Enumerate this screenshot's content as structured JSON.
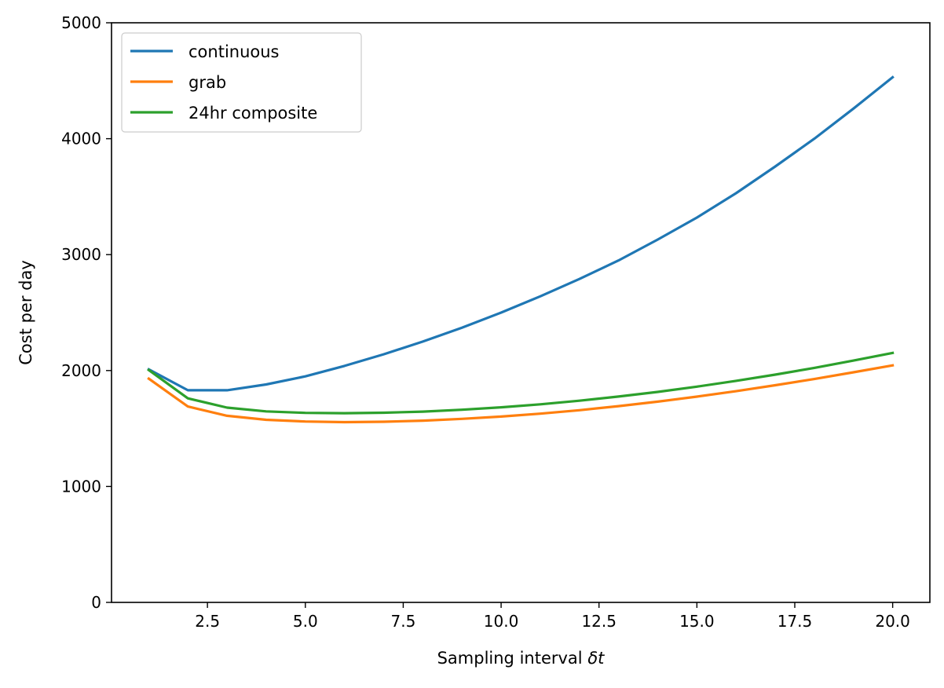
{
  "chart_data": {
    "type": "line",
    "title": "",
    "xlabel_text": "Sampling interval ",
    "xlabel_math": "δt",
    "ylabel": "Cost per day",
    "xlim": [
      0.05,
      20.95
    ],
    "ylim": [
      0,
      5000
    ],
    "xticks": [
      2.5,
      5.0,
      7.5,
      10.0,
      12.5,
      15.0,
      17.5,
      20.0
    ],
    "xtick_labels": [
      "2.5",
      "5.0",
      "7.5",
      "10.0",
      "12.5",
      "15.0",
      "17.5",
      "20.0"
    ],
    "yticks": [
      0,
      1000,
      2000,
      3000,
      4000,
      5000
    ],
    "ytick_labels": [
      "0",
      "1000",
      "2000",
      "3000",
      "4000",
      "5000"
    ],
    "grid": false,
    "legend_position": "top-left",
    "x": [
      1,
      2,
      3,
      4,
      5,
      6,
      7,
      8,
      9,
      10,
      11,
      12,
      13,
      14,
      15,
      16,
      17,
      18,
      19,
      20
    ],
    "series": [
      {
        "name": "continuous",
        "color": "#1f77b4",
        "values": [
          2010,
          1830,
          1830,
          1880,
          1950,
          2040,
          2140,
          2250,
          2370,
          2500,
          2640,
          2790,
          2950,
          3130,
          3320,
          3530,
          3760,
          4000,
          4260,
          4530
        ]
      },
      {
        "name": "grab",
        "color": "#ff7f0e",
        "values": [
          1930,
          1690,
          1610,
          1575,
          1560,
          1555,
          1558,
          1568,
          1583,
          1603,
          1628,
          1658,
          1693,
          1732,
          1775,
          1822,
          1873,
          1927,
          1985,
          2045
        ]
      },
      {
        "name": "24hr composite",
        "color": "#2ca02c",
        "values": [
          2005,
          1760,
          1680,
          1648,
          1635,
          1632,
          1636,
          1646,
          1662,
          1683,
          1709,
          1740,
          1776,
          1816,
          1861,
          1911,
          1965,
          2023,
          2086,
          2152
        ]
      }
    ]
  }
}
